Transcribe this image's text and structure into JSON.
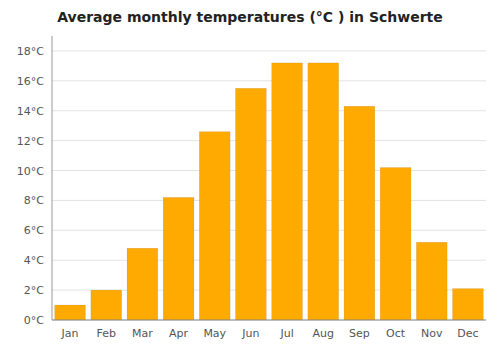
{
  "chart_data": {
    "type": "bar",
    "title": "Average monthly temperatures (°C ) in Schwerte",
    "categories": [
      "Jan",
      "Feb",
      "Mar",
      "Apr",
      "May",
      "Jun",
      "Jul",
      "Aug",
      "Sep",
      "Oct",
      "Nov",
      "Dec"
    ],
    "values": [
      1.0,
      2.0,
      4.8,
      8.2,
      12.6,
      15.5,
      17.2,
      17.2,
      14.3,
      10.2,
      5.2,
      2.1
    ],
    "color": "#FFAA00",
    "ylim": [
      0,
      19
    ],
    "yticks": [
      {
        "value": 0,
        "label": "0°C"
      },
      {
        "value": 2,
        "label": "2°C"
      },
      {
        "value": 4,
        "label": "4°C"
      },
      {
        "value": 6,
        "label": "6°C"
      },
      {
        "value": 8,
        "label": "8°C"
      },
      {
        "value": 10,
        "label": "10°C"
      },
      {
        "value": 12,
        "label": "12°C"
      },
      {
        "value": 14,
        "label": "14°C"
      },
      {
        "value": 16,
        "label": "16°C"
      },
      {
        "value": 18,
        "label": "18°C"
      }
    ],
    "grid": true
  }
}
